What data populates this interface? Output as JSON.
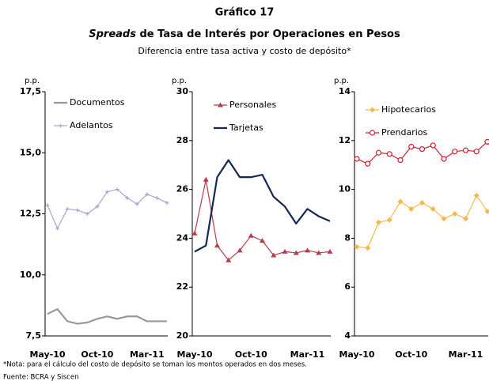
{
  "header": {
    "title": "Gráfico 17",
    "title_italic": "Spreads",
    "title_rest": "de Tasa de Interés por Operaciones en Pesos",
    "subtitle": "Diferencia entre tasa activa y costo de depósito*"
  },
  "chart_data": [
    {
      "type": "line",
      "ylabel": "p.p.",
      "categories": [
        "May-10",
        null,
        null,
        null,
        null,
        "Oct-10",
        null,
        null,
        null,
        null,
        "Mar-11",
        null,
        null
      ],
      "ylim": [
        7.5,
        17.5
      ],
      "yticks": [
        {
          "value": 7.5,
          "label": "7,5"
        },
        {
          "value": 10,
          "label": "10,0"
        },
        {
          "value": 12.5,
          "label": "12,5"
        },
        {
          "value": 15,
          "label": "15,0"
        },
        {
          "value": 17.5,
          "label": "17,5"
        }
      ],
      "series": [
        {
          "name": "Documentos",
          "color": "#999999",
          "marker": "none",
          "values": [
            8.4,
            8.6,
            8.1,
            8.0,
            8.05,
            8.2,
            8.3,
            8.2,
            8.3,
            8.3,
            8.1,
            8.1,
            8.1
          ]
        },
        {
          "name": "Adelantos",
          "color": "#a9a6d1",
          "marker": "cross",
          "values": [
            12.85,
            11.9,
            12.7,
            12.65,
            12.5,
            12.8,
            13.4,
            13.5,
            13.15,
            12.9,
            13.3,
            13.15,
            12.95
          ]
        }
      ]
    },
    {
      "type": "line",
      "ylabel": "p.p.",
      "categories": [
        "May-10",
        null,
        null,
        null,
        null,
        "Oct-10",
        null,
        null,
        null,
        null,
        "Mar-11",
        null,
        null
      ],
      "ylim": [
        20,
        30
      ],
      "yticks": [
        20,
        22,
        24,
        26,
        28,
        30
      ],
      "series": [
        {
          "name": "Personales",
          "color": "#b83b4a",
          "marker": "triangle",
          "values": [
            24.2,
            26.4,
            23.7,
            23.1,
            23.5,
            24.1,
            23.9,
            23.3,
            23.45,
            23.4,
            23.5,
            23.4,
            23.45
          ]
        },
        {
          "name": "Tarjetas",
          "color": "#14285a",
          "marker": "none",
          "values": [
            23.45,
            23.7,
            26.5,
            27.2,
            26.5,
            26.5,
            26.6,
            25.7,
            25.3,
            24.6,
            25.2,
            24.9,
            24.7
          ]
        }
      ]
    },
    {
      "type": "line",
      "ylabel": "p.p.",
      "categories": [
        "May-10",
        null,
        null,
        null,
        null,
        "Oct-10",
        null,
        null,
        null,
        null,
        "Mar-11",
        null,
        null
      ],
      "ylim": [
        4,
        14
      ],
      "yticks": [
        4,
        6,
        8,
        10,
        12,
        14
      ],
      "series": [
        {
          "name": "Hipotecarios",
          "color": "#f5b94a",
          "marker": "diamond",
          "values": [
            7.65,
            7.6,
            8.65,
            8.75,
            9.5,
            9.2,
            9.45,
            9.2,
            8.8,
            9.0,
            8.8,
            9.75,
            9.1
          ]
        },
        {
          "name": "Prendarios",
          "color": "#d0202e",
          "marker": "circle",
          "values": [
            11.25,
            11.05,
            11.5,
            11.45,
            11.2,
            11.75,
            11.65,
            11.8,
            11.25,
            11.55,
            11.6,
            11.55,
            11.95
          ]
        }
      ]
    }
  ],
  "footer": {
    "note": "*Nota: para el cálculo del costo de depósito se toman los montos operados en dos meses.",
    "source": "Fuente: BCRA y Siscen"
  }
}
